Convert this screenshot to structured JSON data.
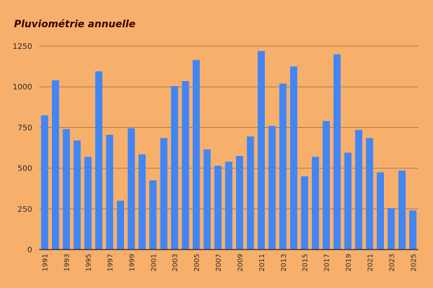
{
  "colors": {
    "background": "#f7b06b",
    "bar": "#4285f4",
    "title": "#3a0000",
    "gridline": "#a27a55",
    "axis": "#222222",
    "text": "#2b2b2b"
  },
  "chart_data": {
    "type": "bar",
    "title": "Pluviométrie annuelle",
    "xlabel": "",
    "ylabel": "",
    "ylim": [
      0,
      1250
    ],
    "yticks": [
      0,
      250,
      500,
      750,
      1000,
      1250
    ],
    "grid": true,
    "legend": "none",
    "categories": [
      "1991",
      "1992",
      "1993",
      "1994",
      "1995",
      "1996",
      "1997",
      "1998",
      "1999",
      "2000",
      "2001",
      "2002",
      "2003",
      "2004",
      "2005",
      "2006",
      "2007",
      "2008",
      "2009",
      "2010",
      "2011",
      "2012",
      "2013",
      "2014",
      "2015",
      "2016",
      "2017",
      "2018",
      "2019",
      "2020",
      "2021",
      "2022",
      "2023",
      "2024",
      "2025"
    ],
    "xtick_labels": [
      "1991",
      "1993",
      "1995",
      "1997",
      "1999",
      "2001",
      "2003",
      "2005",
      "2007",
      "2009",
      "2011",
      "2013",
      "2015",
      "2017",
      "2019",
      "2021",
      "2023",
      "2025"
    ],
    "values": [
      825,
      1040,
      740,
      670,
      570,
      1095,
      705,
      300,
      745,
      585,
      425,
      685,
      1005,
      1035,
      1165,
      615,
      515,
      540,
      575,
      695,
      1220,
      760,
      1020,
      1125,
      450,
      570,
      790,
      1200,
      595,
      735,
      685,
      475,
      255,
      485,
      240
    ]
  }
}
